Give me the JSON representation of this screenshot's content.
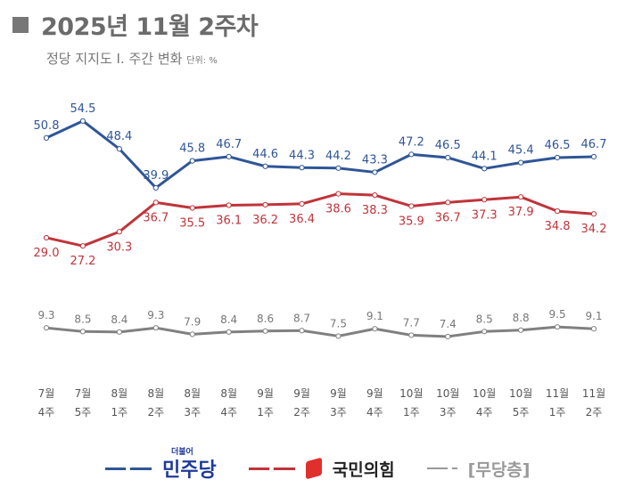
{
  "title": "2025년 11월 2주차",
  "subtitle": "정당 지지도 Ⅰ. 주간 변화",
  "unit": "단위: %",
  "legend": {
    "dem": "민주당",
    "dem_small": "더불어",
    "ppp": "국민의힘",
    "none": "[무당층]"
  },
  "chart_data": {
    "type": "line",
    "categories": [
      [
        "7월",
        "4주"
      ],
      [
        "7월",
        "5주"
      ],
      [
        "8월",
        "1주"
      ],
      [
        "8월",
        "2주"
      ],
      [
        "8월",
        "3주"
      ],
      [
        "8월",
        "4주"
      ],
      [
        "9월",
        "1주"
      ],
      [
        "9월",
        "2주"
      ],
      [
        "9월",
        "3주"
      ],
      [
        "9월",
        "4주"
      ],
      [
        "10월",
        "1주"
      ],
      [
        "10월",
        "3주"
      ],
      [
        "10월",
        "4주"
      ],
      [
        "10월",
        "5주"
      ],
      [
        "11월",
        "1주"
      ],
      [
        "11월",
        "2주"
      ]
    ],
    "series": [
      {
        "name": "민주당",
        "color": "#2f5597",
        "label_pos": "above",
        "values": [
          50.8,
          54.5,
          48.4,
          39.9,
          45.8,
          46.7,
          44.6,
          44.3,
          44.2,
          43.3,
          47.2,
          46.5,
          44.1,
          45.4,
          46.5,
          46.7
        ]
      },
      {
        "name": "국민의힘",
        "color": "#c0343a",
        "label_pos": "below",
        "values": [
          29.0,
          27.2,
          30.3,
          36.7,
          35.5,
          36.1,
          36.2,
          36.4,
          38.6,
          38.3,
          35.9,
          36.7,
          37.3,
          37.9,
          34.8,
          34.2
        ]
      },
      {
        "name": "[무당층]",
        "color": "#808080",
        "label_pos": "above",
        "values": [
          9.3,
          8.5,
          8.4,
          9.3,
          7.9,
          8.4,
          8.6,
          8.7,
          7.5,
          9.1,
          7.7,
          7.4,
          8.5,
          8.8,
          9.5,
          9.1
        ]
      }
    ],
    "ylim": [
      0,
      60
    ],
    "grid": false
  }
}
